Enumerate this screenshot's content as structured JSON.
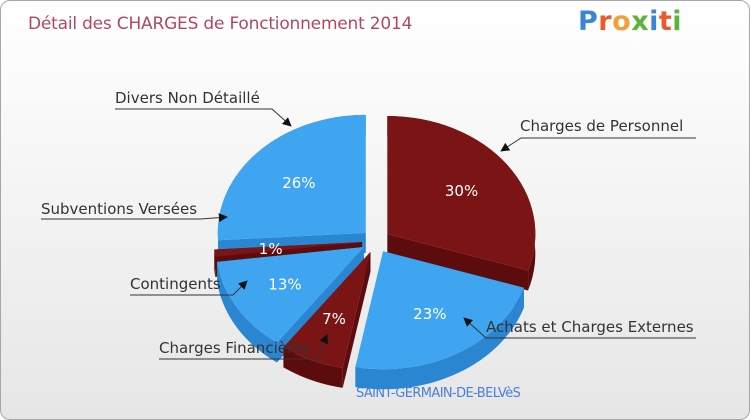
{
  "title": "Détail des CHARGES de Fonctionnement 2014",
  "logo": {
    "text": "Proxiti",
    "letters": [
      "P",
      "r",
      "o",
      "x",
      "i",
      "t",
      "i"
    ],
    "colors": [
      "#3a86d6",
      "#e65c2c",
      "#f2a03a",
      "#5ab53a",
      "#3a86d6",
      "#e65c2c",
      "#5ab53a"
    ]
  },
  "subtitle": "SAINT-GERMAIN-DE-BELVèS",
  "colors": {
    "blue": "#3fa5f1",
    "blue_side": "#2a86d1",
    "red": "#7b1414",
    "red_side": "#5c0c0c"
  },
  "chart_data": {
    "type": "pie",
    "title": "Détail des CHARGES de Fonctionnement 2014",
    "labels": [
      "Charges de Personnel",
      "Achats et Charges Externes",
      "Charges Financières",
      "Contingents",
      "Subventions Versées",
      "Divers Non Détaillé"
    ],
    "values": [
      30,
      23,
      7,
      13,
      1,
      26
    ],
    "value_labels": [
      "30%",
      "23%",
      "7%",
      "13%",
      "1%",
      "26%"
    ],
    "slice_colors": [
      "#7b1414",
      "#3fa5f1",
      "#7b1414",
      "#3fa5f1",
      "#7b1414",
      "#3fa5f1"
    ],
    "style": "3d-exploded"
  }
}
